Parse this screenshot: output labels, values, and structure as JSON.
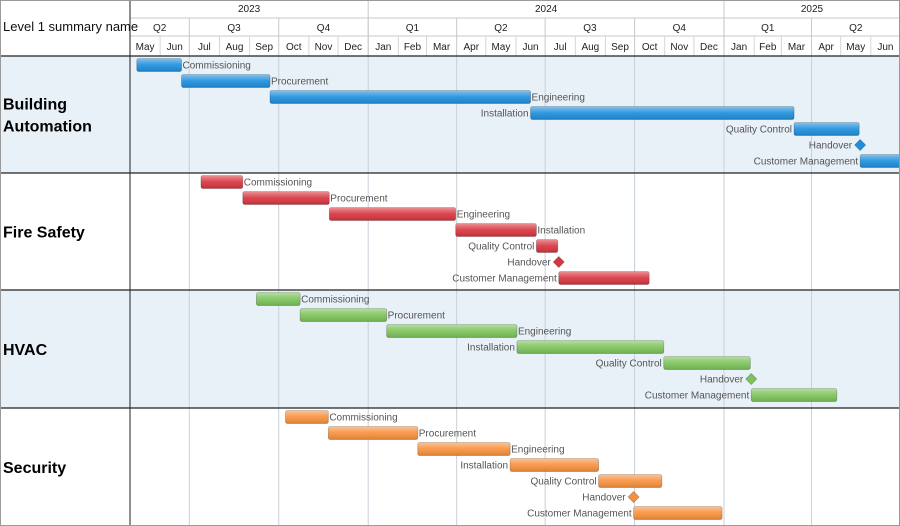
{
  "header": {
    "title": "Level 1 summary name",
    "years": [
      {
        "label": "2023",
        "start": "2023-05-01",
        "end": "2024-01-01"
      },
      {
        "label": "2024",
        "start": "2024-01-01",
        "end": "2025-01-01"
      },
      {
        "label": "2025",
        "start": "2025-01-01",
        "end": "2025-07-01"
      }
    ],
    "quarters": [
      {
        "label": "Q2",
        "start": "2023-05-01",
        "end": "2023-07-01"
      },
      {
        "label": "Q3",
        "start": "2023-07-01",
        "end": "2023-10-01"
      },
      {
        "label": "Q4",
        "start": "2023-10-01",
        "end": "2024-01-01"
      },
      {
        "label": "Q1",
        "start": "2024-01-01",
        "end": "2024-04-01"
      },
      {
        "label": "Q2",
        "start": "2024-04-01",
        "end": "2024-07-01"
      },
      {
        "label": "Q3",
        "start": "2024-07-01",
        "end": "2024-10-01"
      },
      {
        "label": "Q4",
        "start": "2024-10-01",
        "end": "2025-01-01"
      },
      {
        "label": "Q1",
        "start": "2025-01-01",
        "end": "2025-04-01"
      },
      {
        "label": "Q2",
        "start": "2025-04-01",
        "end": "2025-07-01"
      }
    ],
    "months": [
      "May",
      "Jun",
      "Jul",
      "Aug",
      "Sep",
      "Oct",
      "Nov",
      "Dec",
      "Jan",
      "Feb",
      "Mar",
      "Apr",
      "May",
      "Jun",
      "Jul",
      "Aug",
      "Sep",
      "Oct",
      "Nov",
      "Dec",
      "Jan",
      "Feb",
      "Mar",
      "Apr",
      "May",
      "Jun"
    ]
  },
  "chart_data": {
    "type": "gantt",
    "time_range": [
      "2023-05-01",
      "2025-07-01"
    ],
    "groups": [
      {
        "name": "Building Automation",
        "color": "#1f8fdc",
        "band": "#e8f0f8",
        "tasks": [
          {
            "name": "Commissioning",
            "start": "2023-05-08",
            "end": "2023-06-23",
            "label_side": "right"
          },
          {
            "name": "Procurement",
            "start": "2023-06-23",
            "end": "2023-09-22",
            "label_side": "right"
          },
          {
            "name": "Engineering",
            "start": "2023-09-22",
            "end": "2024-06-16",
            "label_side": "right"
          },
          {
            "name": "Installation",
            "start": "2024-06-16",
            "end": "2025-03-14",
            "label_side": "left"
          },
          {
            "name": "Quality Control",
            "start": "2025-03-14",
            "end": "2025-05-20",
            "label_side": "left"
          },
          {
            "name": "Handover",
            "milestone": true,
            "date": "2025-05-21",
            "label_side": "left"
          },
          {
            "name": "Customer Management",
            "start": "2025-05-21",
            "end": "2025-07-06",
            "label_side": "left"
          }
        ]
      },
      {
        "name": "Fire Safety",
        "color": "#d8353e",
        "band": "#ffffff",
        "tasks": [
          {
            "name": "Commissioning",
            "start": "2023-07-13",
            "end": "2023-08-25",
            "label_side": "right"
          },
          {
            "name": "Procurement",
            "start": "2023-08-25",
            "end": "2023-11-22",
            "label_side": "right"
          },
          {
            "name": "Engineering",
            "start": "2023-11-22",
            "end": "2024-03-31",
            "label_side": "right"
          },
          {
            "name": "Installation",
            "start": "2024-03-31",
            "end": "2024-06-22",
            "label_side": "right"
          },
          {
            "name": "Quality Control",
            "start": "2024-06-22",
            "end": "2024-07-14",
            "label_side": "left"
          },
          {
            "name": "Handover",
            "milestone": true,
            "date": "2024-07-15",
            "label_side": "left"
          },
          {
            "name": "Customer Management",
            "start": "2024-07-15",
            "end": "2024-10-16",
            "label_side": "left"
          }
        ]
      },
      {
        "name": "HVAC",
        "color": "#7cc35a",
        "band": "#e8f0f8",
        "tasks": [
          {
            "name": "Commissioning",
            "start": "2023-09-08",
            "end": "2023-10-23",
            "label_side": "right"
          },
          {
            "name": "Procurement",
            "start": "2023-10-23",
            "end": "2024-01-20",
            "label_side": "right"
          },
          {
            "name": "Engineering",
            "start": "2024-01-20",
            "end": "2024-06-02",
            "label_side": "right"
          },
          {
            "name": "Installation",
            "start": "2024-06-02",
            "end": "2024-10-31",
            "label_side": "left"
          },
          {
            "name": "Quality Control",
            "start": "2024-10-31",
            "end": "2025-01-28",
            "label_side": "left"
          },
          {
            "name": "Handover",
            "milestone": true,
            "date": "2025-01-29",
            "label_side": "left"
          },
          {
            "name": "Customer Management",
            "start": "2025-01-29",
            "end": "2025-04-27",
            "label_side": "left"
          }
        ]
      },
      {
        "name": "Security",
        "color": "#f7913d",
        "band": "#ffffff",
        "tasks": [
          {
            "name": "Commissioning",
            "start": "2023-10-08",
            "end": "2023-11-21",
            "label_side": "right"
          },
          {
            "name": "Procurement",
            "start": "2023-11-21",
            "end": "2024-02-21",
            "label_side": "right"
          },
          {
            "name": "Engineering",
            "start": "2024-02-21",
            "end": "2024-05-26",
            "label_side": "right"
          },
          {
            "name": "Installation",
            "start": "2024-05-26",
            "end": "2024-08-25",
            "label_side": "left"
          },
          {
            "name": "Quality Control",
            "start": "2024-08-25",
            "end": "2024-10-29",
            "label_side": "left"
          },
          {
            "name": "Handover",
            "milestone": true,
            "date": "2024-09-30",
            "label_side": "left"
          },
          {
            "name": "Customer Management",
            "start": "2024-09-30",
            "end": "2024-12-30",
            "label_side": "left"
          }
        ]
      }
    ]
  }
}
